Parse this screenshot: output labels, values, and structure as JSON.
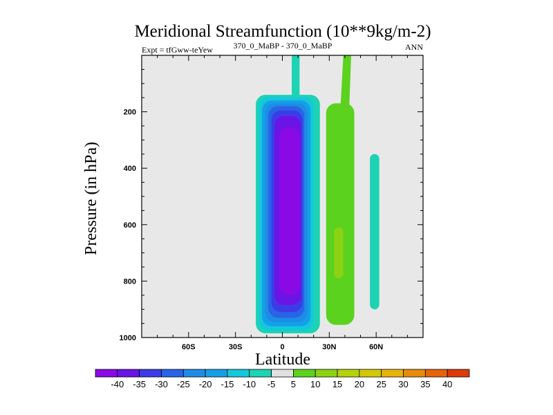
{
  "chart_data": {
    "type": "contour",
    "title": "Meridional Streamfunction (10**9kg/m-2)",
    "subtitle_left": "Expt = tfGww-teYew",
    "subtitle_center": "370_0_MaBP - 370_0_MaBP",
    "subtitle_right": "ANN",
    "xlabel": "Latitude",
    "ylabel": "Pressure (in hPa)",
    "xlim": [
      -90,
      90
    ],
    "ylim": [
      1000,
      0
    ],
    "x_ticks": [
      {
        "value": -60,
        "label": "60S"
      },
      {
        "value": -30,
        "label": "30S"
      },
      {
        "value": 0,
        "label": "0"
      },
      {
        "value": 30,
        "label": "30N"
      },
      {
        "value": 60,
        "label": "60N"
      }
    ],
    "y_ticks": [
      {
        "value": 200,
        "label": "200"
      },
      {
        "value": 400,
        "label": "400"
      },
      {
        "value": 600,
        "label": "600"
      },
      {
        "value": 800,
        "label": "800"
      },
      {
        "value": 1000,
        "label": "1000"
      }
    ],
    "background_color": "#e8e8e8",
    "colorbar": {
      "levels": [
        "-40",
        "-35",
        "-30",
        "-25",
        "-20",
        "-15",
        "-10",
        "-5",
        "5",
        "10",
        "15",
        "20",
        "25",
        "30",
        "35",
        "40"
      ],
      "colors": [
        "#8a0ae6",
        "#6a14e6",
        "#3c3ce6",
        "#2864e6",
        "#1e8ce6",
        "#14a0e6",
        "#14c8dc",
        "#1ed2b4",
        "#e0e0e0",
        "#5ad21e",
        "#8cd214",
        "#b4d20a",
        "#d2c80a",
        "#e6b40a",
        "#e68c0a",
        "#e6640a",
        "#dc3c0a"
      ]
    },
    "cells": [
      {
        "name": "southern-hadley-cell",
        "sign": "negative",
        "layers": [
          {
            "level": -5,
            "lat": [
              -17,
              24
            ],
            "p": [
              140,
              985
            ],
            "color": "#1ed2b4"
          },
          {
            "level": -10,
            "lat": [
              -15,
              20
            ],
            "p": [
              148,
              975
            ],
            "color": "#14c8dc"
          },
          {
            "level": -15,
            "lat": [
              -13,
              18
            ],
            "p": [
              160,
              960
            ],
            "color": "#14a0e6"
          },
          {
            "level": -20,
            "lat": [
              -11,
              16
            ],
            "p": [
              170,
              945
            ],
            "color": "#1e8ce6"
          },
          {
            "level": -25,
            "lat": [
              -9,
              14
            ],
            "p": [
              180,
              930
            ],
            "color": "#2864e6"
          },
          {
            "level": -30,
            "lat": [
              -7,
              13
            ],
            "p": [
              195,
              910
            ],
            "color": "#3c3ce6"
          },
          {
            "level": -35,
            "lat": [
              -5,
              12
            ],
            "p": [
              215,
              885
            ],
            "color": "#6a14e6"
          },
          {
            "level": -40,
            "lat": [
              -2,
              11
            ],
            "p": [
              255,
              850
            ],
            "color": "#8a0ae6"
          }
        ]
      },
      {
        "name": "northern-ferrel-cell",
        "sign": "positive",
        "layers": [
          {
            "level": 5,
            "lat": [
              28,
              46
            ],
            "p": [
              170,
              955
            ],
            "color": "#5ad21e"
          },
          {
            "level": 10,
            "lat": [
              33,
              39
            ],
            "p": [
              610,
              790
            ],
            "color": "#8cd214"
          }
        ]
      },
      {
        "name": "high-latitude-cell",
        "sign": "negative",
        "layers": [
          {
            "level": -5,
            "lat": [
              56,
              62
            ],
            "p": [
              350,
              900
            ],
            "color": "#1ed2b4"
          }
        ]
      }
    ]
  }
}
